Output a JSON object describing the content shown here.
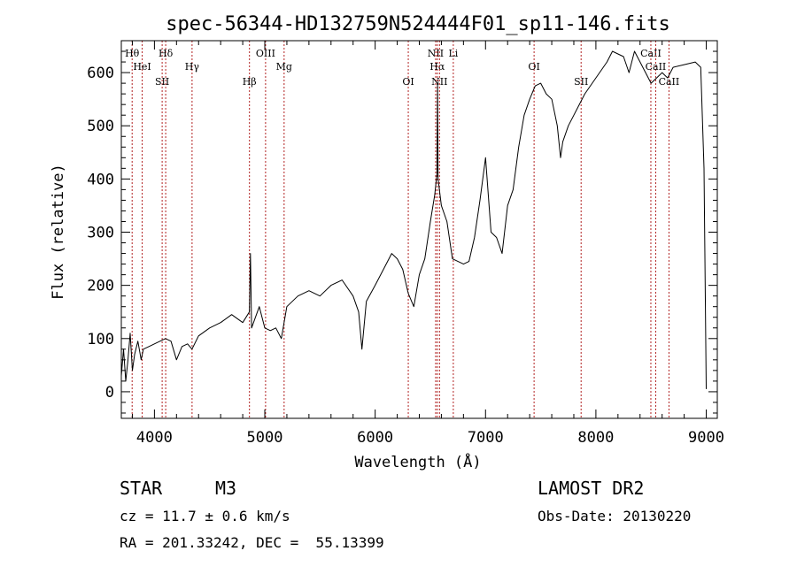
{
  "chart_data": {
    "type": "line",
    "title": "spec-56344-HD132759N524444F01_sp11-146.fits",
    "xlabel": "Wavelength (Å)",
    "ylabel": "Flux (relative)",
    "xlim": [
      3700,
      9100
    ],
    "ylim": [
      -50,
      660
    ],
    "xticks": [
      4000,
      5000,
      6000,
      7000,
      8000,
      9000
    ],
    "yticks": [
      0,
      100,
      200,
      300,
      400,
      500,
      600
    ],
    "grid": false,
    "series": [
      {
        "points": [
          [
            3700,
            30
          ],
          [
            3720,
            80
          ],
          [
            3740,
            20
          ],
          [
            3760,
            60
          ],
          [
            3780,
            110
          ],
          [
            3800,
            40
          ],
          [
            3820,
            70
          ],
          [
            3850,
            95
          ],
          [
            3880,
            60
          ],
          [
            3900,
            80
          ],
          [
            3950,
            85
          ],
          [
            4000,
            90
          ],
          [
            4050,
            95
          ],
          [
            4100,
            100
          ],
          [
            4150,
            95
          ],
          [
            4200,
            60
          ],
          [
            4250,
            85
          ],
          [
            4300,
            90
          ],
          [
            4340,
            80
          ],
          [
            4400,
            105
          ],
          [
            4500,
            120
          ],
          [
            4600,
            130
          ],
          [
            4700,
            145
          ],
          [
            4800,
            130
          ],
          [
            4860,
            150
          ],
          [
            4870,
            260
          ],
          [
            4880,
            120
          ],
          [
            4950,
            160
          ],
          [
            5000,
            120
          ],
          [
            5050,
            115
          ],
          [
            5100,
            120
          ],
          [
            5150,
            100
          ],
          [
            5200,
            160
          ],
          [
            5300,
            180
          ],
          [
            5400,
            190
          ],
          [
            5500,
            180
          ],
          [
            5600,
            200
          ],
          [
            5700,
            210
          ],
          [
            5800,
            180
          ],
          [
            5850,
            150
          ],
          [
            5880,
            80
          ],
          [
            5920,
            170
          ],
          [
            6000,
            200
          ],
          [
            6100,
            240
          ],
          [
            6150,
            260
          ],
          [
            6200,
            250
          ],
          [
            6250,
            230
          ],
          [
            6300,
            185
          ],
          [
            6350,
            160
          ],
          [
            6400,
            220
          ],
          [
            6450,
            250
          ],
          [
            6500,
            320
          ],
          [
            6540,
            370
          ],
          [
            6560,
            410
          ],
          [
            6565,
            580
          ],
          [
            6570,
            400
          ],
          [
            6600,
            350
          ],
          [
            6650,
            320
          ],
          [
            6700,
            250
          ],
          [
            6800,
            240
          ],
          [
            6850,
            245
          ],
          [
            6900,
            290
          ],
          [
            6950,
            360
          ],
          [
            7000,
            440
          ],
          [
            7050,
            300
          ],
          [
            7100,
            290
          ],
          [
            7150,
            260
          ],
          [
            7200,
            350
          ],
          [
            7250,
            380
          ],
          [
            7300,
            460
          ],
          [
            7350,
            520
          ],
          [
            7400,
            550
          ],
          [
            7450,
            575
          ],
          [
            7500,
            580
          ],
          [
            7550,
            560
          ],
          [
            7600,
            550
          ],
          [
            7650,
            500
          ],
          [
            7680,
            440
          ],
          [
            7700,
            470
          ],
          [
            7750,
            500
          ],
          [
            7800,
            520
          ],
          [
            7900,
            560
          ],
          [
            8000,
            590
          ],
          [
            8100,
            620
          ],
          [
            8150,
            640
          ],
          [
            8200,
            635
          ],
          [
            8250,
            630
          ],
          [
            8300,
            600
          ],
          [
            8350,
            640
          ],
          [
            8400,
            620
          ],
          [
            8450,
            600
          ],
          [
            8500,
            580
          ],
          [
            8550,
            590
          ],
          [
            8600,
            600
          ],
          [
            8650,
            590
          ],
          [
            8700,
            610
          ],
          [
            8800,
            615
          ],
          [
            8900,
            620
          ],
          [
            8950,
            610
          ],
          [
            8980,
            420
          ],
          [
            9000,
            5
          ]
        ]
      }
    ],
    "lines": [
      {
        "label": "Hθ",
        "x": 3798
      },
      {
        "label": "HeI",
        "x": 3889
      },
      {
        "label": "SII",
        "x": 4070
      },
      {
        "label": "Hδ",
        "x": 4102
      },
      {
        "label": "Hγ",
        "x": 4341
      },
      {
        "label": "Hβ",
        "x": 4861
      },
      {
        "label": "OIII",
        "x": 5007
      },
      {
        "label": "Mg",
        "x": 5175
      },
      {
        "label": "OI",
        "x": 6300
      },
      {
        "label": "NII",
        "x": 6548
      },
      {
        "label": "Hα",
        "x": 6563
      },
      {
        "label": "NII",
        "x": 6583
      },
      {
        "label": "Li",
        "x": 6708
      },
      {
        "label": "OI",
        "x": 7440
      },
      {
        "label": "SII",
        "x": 7866
      },
      {
        "label": "CaII",
        "x": 8498
      },
      {
        "label": "CaII",
        "x": 8542
      },
      {
        "label": "CaII",
        "x": 8662
      }
    ]
  },
  "info": {
    "class": "STAR",
    "subclass": "M3",
    "cz": "cz = 11.7 ± 0.6 km/s",
    "radec": "RA = 201.33242, DEC =  55.13399",
    "survey": "LAMOST DR2",
    "obsdate": "Obs-Date: 20130220"
  },
  "colors": {
    "line_marker": "#b22222",
    "spectrum": "#000000",
    "axis": "#000000"
  }
}
